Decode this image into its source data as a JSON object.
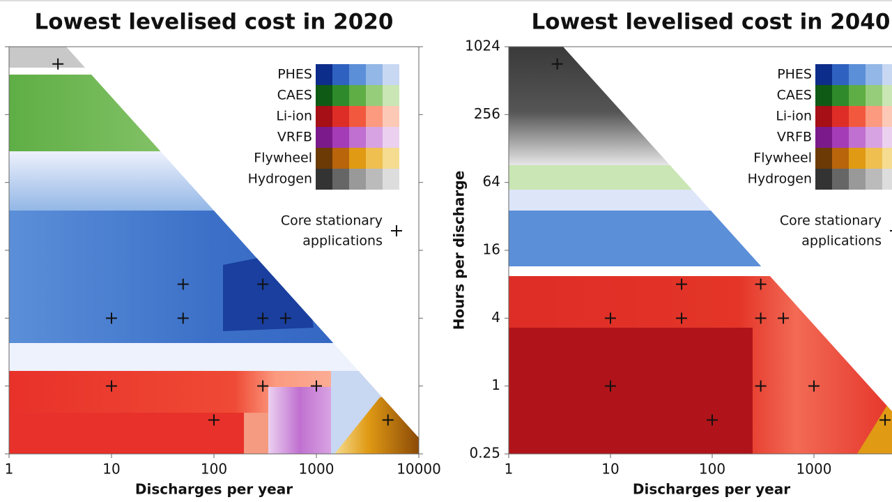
{
  "chart_data": [
    {
      "type": "scatter",
      "title": "Lowest levelised cost in 2020",
      "xlabel": "Discharges per year",
      "xlim": [
        1,
        10000
      ],
      "xticks": [
        1,
        10,
        100,
        1000,
        10000
      ],
      "xlog": true,
      "ylim": [
        0.25,
        1024
      ],
      "yticks": [
        0.25,
        1,
        4,
        16,
        64,
        256,
        1024
      ],
      "ylog": true,
      "ytick_labels": false,
      "legend": [
        {
          "name": "PHES",
          "colors": [
            "#0d2d8a",
            "#2f62c0",
            "#5b8fd8",
            "#93b7e6",
            "#c8d8f3"
          ]
        },
        {
          "name": "CAES",
          "colors": [
            "#0f5a14",
            "#2e8a2a",
            "#5fae45",
            "#96cd7a",
            "#c9e6b4"
          ]
        },
        {
          "name": "Li-ion",
          "colors": [
            "#a50f15",
            "#de2d26",
            "#f2583e",
            "#fb9a7f",
            "#fcc9b6"
          ]
        },
        {
          "name": "VRFB",
          "colors": [
            "#7b1a8a",
            "#a43cb8",
            "#c070d0",
            "#d8a3e2",
            "#ebd0f0"
          ]
        },
        {
          "name": "Flywheel",
          "colors": [
            "#6b3a05",
            "#b8650c",
            "#e09a14",
            "#efc050",
            "#f5dc90"
          ]
        },
        {
          "name": "Hydrogen",
          "colors": [
            "#333333",
            "#666666",
            "#999999",
            "#bbbbbb",
            "#dddddd"
          ]
        }
      ],
      "marker_label": [
        "Core stationary",
        "applications"
      ],
      "x": [
        3,
        50,
        300,
        10,
        50,
        300,
        500,
        10,
        300,
        1000,
        100,
        5000
      ],
      "y": [
        720,
        8,
        8,
        4,
        4,
        4,
        4,
        1,
        1,
        1,
        0.5,
        0.5
      ]
    },
    {
      "type": "scatter",
      "title": "Lowest levelised cost in 2040",
      "xlabel": "Discharges per year",
      "ylabel": "Hours per discharge",
      "xlim": [
        1,
        10000
      ],
      "xticks": [
        1,
        10,
        100,
        1000
      ],
      "xlog": true,
      "ylim": [
        0.25,
        1024
      ],
      "yticks": [
        0.25,
        1,
        4,
        16,
        64,
        256,
        1024
      ],
      "ylog": true,
      "ytick_labels": true,
      "legend": [
        {
          "name": "PHES",
          "colors": [
            "#0d2d8a",
            "#2f62c0",
            "#5b8fd8",
            "#93b7e6",
            "#c8d8f3"
          ]
        },
        {
          "name": "CAES",
          "colors": [
            "#0f5a14",
            "#2e8a2a",
            "#5fae45",
            "#96cd7a",
            "#c9e6b4"
          ]
        },
        {
          "name": "Li-ion",
          "colors": [
            "#a50f15",
            "#de2d26",
            "#f2583e",
            "#fb9a7f",
            "#fcc9b6"
          ]
        },
        {
          "name": "VRFB",
          "colors": [
            "#7b1a8a",
            "#a43cb8",
            "#c070d0",
            "#d8a3e2",
            "#ebd0f0"
          ]
        },
        {
          "name": "Flywheel",
          "colors": [
            "#6b3a05",
            "#b8650c",
            "#e09a14",
            "#efc050",
            "#f5dc90"
          ]
        },
        {
          "name": "Hydrogen",
          "colors": [
            "#333333",
            "#666666",
            "#999999",
            "#bbbbbb",
            "#dddddd"
          ]
        }
      ],
      "marker_label": [
        "Core stationary",
        "applications"
      ],
      "x": [
        3,
        50,
        300,
        10,
        50,
        300,
        500,
        10,
        300,
        1000,
        100,
        5000
      ],
      "y": [
        720,
        8,
        8,
        4,
        4,
        4,
        4,
        1,
        1,
        1,
        0.5,
        0.5
      ]
    }
  ]
}
